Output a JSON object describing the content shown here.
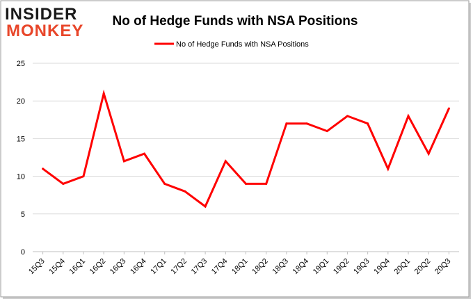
{
  "logo": {
    "line1": "INSIDER",
    "line2": "MONKEY",
    "color_dark": "#1a1a1a",
    "color_accent": "#e8462a"
  },
  "chart_data": {
    "type": "line",
    "title": "No of Hedge Funds with NSA Positions",
    "xlabel": "",
    "ylabel": "",
    "categories": [
      "15Q3",
      "15Q4",
      "16Q1",
      "16Q2",
      "16Q3",
      "16Q4",
      "17Q1",
      "17Q2",
      "17Q3",
      "17Q4",
      "18Q1",
      "18Q2",
      "18Q3",
      "18Q4",
      "19Q1",
      "19Q2",
      "19Q3",
      "19Q4",
      "20Q1",
      "20Q2",
      "20Q3"
    ],
    "series": [
      {
        "name": "No of Hedge Funds with NSA Positions",
        "color": "#ff0000",
        "values": [
          11,
          9,
          10,
          21,
          12,
          13,
          9,
          8,
          6,
          12,
          9,
          9,
          17,
          17,
          16,
          18,
          17,
          11,
          18,
          13,
          19
        ]
      }
    ],
    "ylim": [
      0,
      25
    ],
    "yticks": [
      0,
      5,
      10,
      15,
      20,
      25
    ],
    "grid": true,
    "legend": "top-center"
  }
}
